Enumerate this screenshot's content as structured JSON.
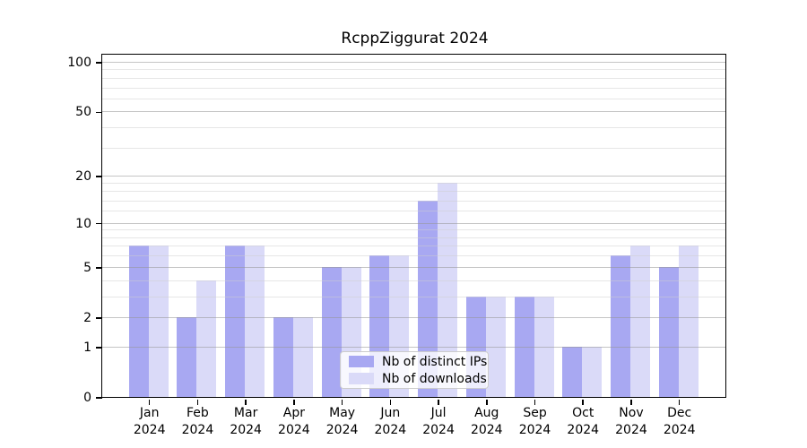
{
  "figure": {
    "title": "RcppZiggurat 2024"
  },
  "chart_data": {
    "type": "bar",
    "title": "RcppZiggurat 2024",
    "categories": [
      "Jan",
      "Feb",
      "Mar",
      "Apr",
      "May",
      "Jun",
      "Jul",
      "Aug",
      "Sep",
      "Oct",
      "Nov",
      "Dec"
    ],
    "x_tick_year": "2024",
    "series": [
      {
        "name": "Nb of distinct IPs",
        "color": "#a8a8f2",
        "values": [
          7,
          2,
          7,
          2,
          5,
          6,
          14,
          3,
          3,
          1,
          6,
          5
        ]
      },
      {
        "name": "Nb of downloads",
        "color": "#dadaf8",
        "values": [
          7,
          4,
          7,
          2,
          5,
          6,
          18,
          3,
          3,
          1,
          7,
          7
        ]
      }
    ],
    "y_axis": {
      "scale": "log10(1+x)",
      "tick_labels": [
        0,
        1,
        2,
        5,
        10,
        20,
        50,
        100
      ],
      "minor_gridlines": [
        3,
        4,
        6,
        7,
        8,
        9,
        12,
        14,
        16,
        18,
        30,
        40,
        60,
        70,
        80,
        90
      ],
      "range": [
        0,
        110
      ]
    },
    "legend": {
      "position": "bottom-center"
    },
    "grid": true,
    "xlabel": "",
    "ylabel": ""
  }
}
